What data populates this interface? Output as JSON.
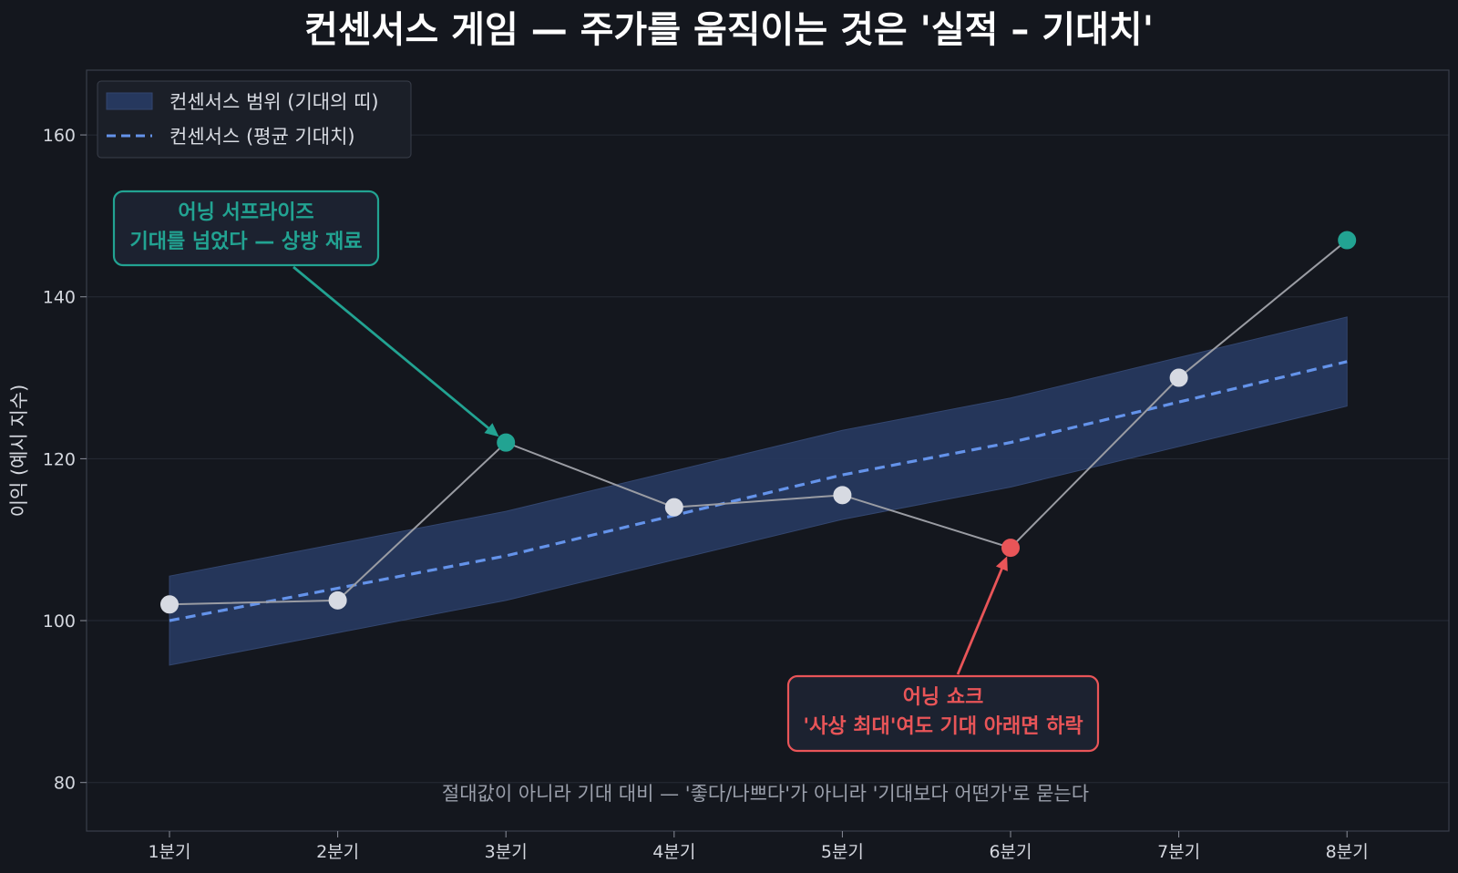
{
  "title": "컨센서스 게임 — 주가를 움직이는 것은 '실적 – 기대치'",
  "chart_data": {
    "type": "line",
    "title": "컨센서스 게임 — 주가를 움직이는 것은 '실적 – 기대치'",
    "xlabel": "",
    "ylabel": "이익 (예시 지수)",
    "categories": [
      "1분기",
      "2분기",
      "3분기",
      "4분기",
      "5분기",
      "6분기",
      "7분기",
      "8분기"
    ],
    "ylim": [
      74,
      168
    ],
    "yticks": [
      80,
      100,
      120,
      140,
      160
    ],
    "grid": true,
    "legend_position": "top-left",
    "band": {
      "name": "컨센서스 범위 (기대의 띠)",
      "lower": [
        94.5,
        98.5,
        102.5,
        107.5,
        112.5,
        116.5,
        121.5,
        126.5
      ],
      "upper": [
        105.5,
        109.5,
        113.5,
        118.5,
        123.5,
        127.5,
        132.5,
        137.5
      ]
    },
    "series": [
      {
        "name": "컨센서스 (평균 기대치)",
        "style": "dashed",
        "values": [
          100,
          104,
          108,
          113,
          118,
          122,
          127,
          132
        ]
      },
      {
        "style": "solid",
        "values": [
          102,
          102.5,
          122,
          114,
          115.5,
          109,
          130,
          147
        ],
        "point_colors": [
          "#d7dae2",
          "#d7dae2",
          "#22a392",
          "#d7dae2",
          "#d7dae2",
          "#e95558",
          "#d7dae2",
          "#22a392"
        ]
      }
    ],
    "annotations": [
      {
        "kind": "surprise",
        "lines": [
          "어닝 서프라이즈",
          "기대를 넘었다 — 상방 재료"
        ],
        "target_index": 2,
        "color": "#22a392"
      },
      {
        "kind": "shock",
        "lines": [
          "어닝 쇼크",
          "'사상 최대'여도 기대 아래면 하락"
        ],
        "target_index": 5,
        "color": "#e95558"
      }
    ],
    "note": "절대값이 아니라 기대 대비 — '좋다/나쁘다'가 아니라 '기대보다 어떤가'로 묻는다"
  },
  "colors": {
    "background": "#14171e",
    "plot_frame": "#3a3f4b",
    "grid": "#262b35",
    "band_fill": "#26385e",
    "band_edge": "#33466f",
    "consensus": "#6493ea",
    "actual_line": "#9a9ca3",
    "point_default": "#d7dae2",
    "surprise": "#22a392",
    "shock": "#e95558",
    "annot_box_fill": "#1c2230",
    "legend_fill": "#1b1f28",
    "legend_edge": "#3a3f4b"
  }
}
